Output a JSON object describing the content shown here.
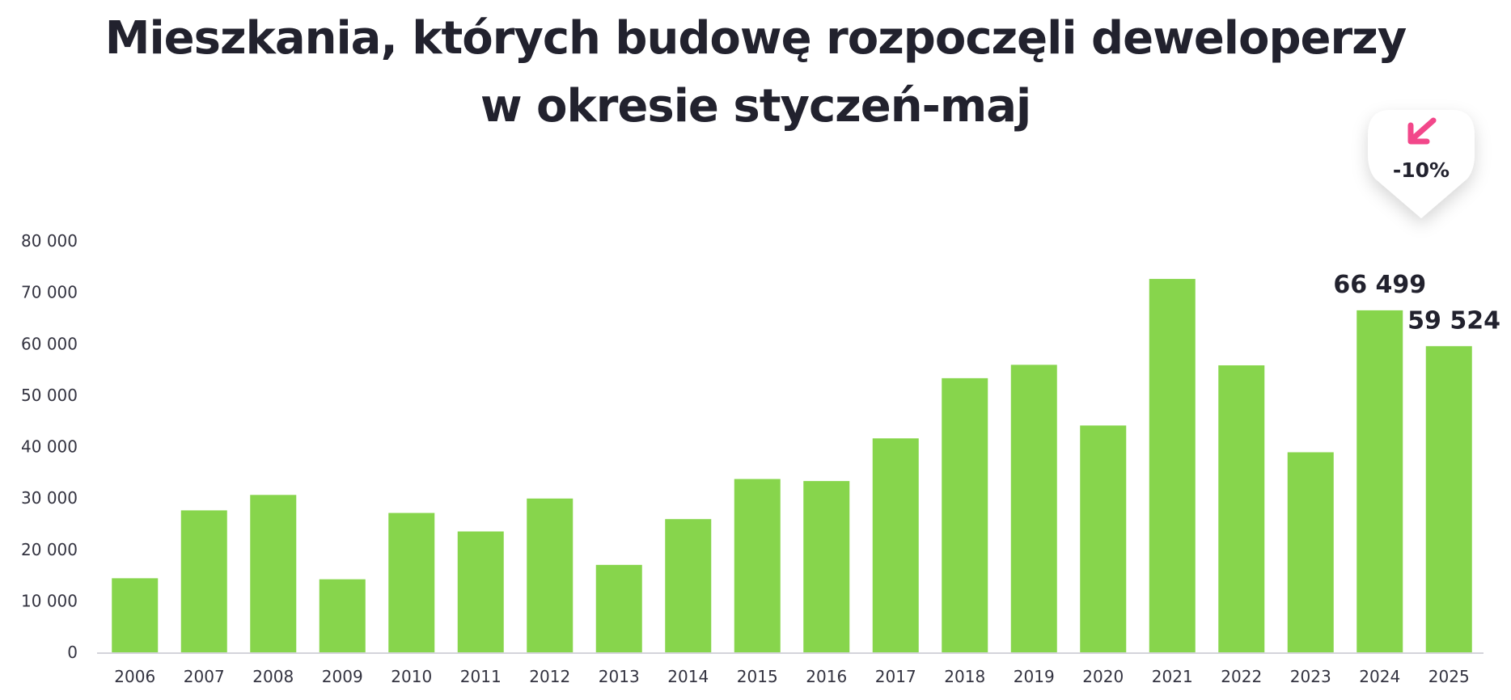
{
  "title_line1": "Mieszkania, których budowę rozpoczęli deweloperzy",
  "title_line2": "w okresie styczeń-maj",
  "chart_data": {
    "type": "bar",
    "title": "Mieszkania, których budowę rozpoczęli deweloperzy w okresie styczeń-maj",
    "xlabel": "",
    "ylabel": "",
    "categories": [
      "2006",
      "2007",
      "2008",
      "2009",
      "2010",
      "2011",
      "2012",
      "2013",
      "2014",
      "2015",
      "2016",
      "2017",
      "2018",
      "2019",
      "2020",
      "2021",
      "2022",
      "2023",
      "2024",
      "2025"
    ],
    "values": [
      14400,
      27600,
      30600,
      14200,
      27100,
      23500,
      29900,
      17000,
      25900,
      33700,
      33300,
      41600,
      53300,
      55900,
      44100,
      72600,
      55800,
      38900,
      66499,
      59524
    ],
    "ylim": [
      0,
      80000
    ],
    "yticks": [
      0,
      10000,
      20000,
      30000,
      40000,
      50000,
      60000,
      70000,
      80000
    ],
    "ytick_labels": [
      "0",
      "10 000",
      "20 000",
      "30 000",
      "40 000",
      "50 000",
      "60 000",
      "70 000",
      "80 000"
    ],
    "grid": false,
    "bar_color": "#87d54c",
    "data_labels": [
      {
        "category": "2024",
        "text": "66 499"
      },
      {
        "category": "2025",
        "text": "59 524"
      }
    ],
    "annotation": {
      "text": "-10%",
      "icon": "arrow-down-left-icon",
      "icon_color": "#f2478a"
    }
  }
}
